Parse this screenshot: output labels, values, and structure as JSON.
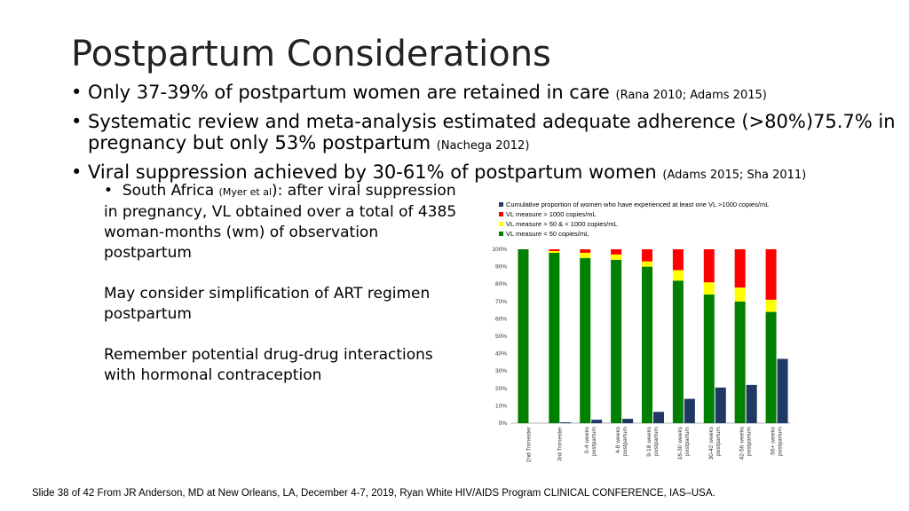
{
  "slide": {
    "title": "Postpartum Considerations",
    "bullets": [
      {
        "text": "Only 37-39% of postpartum women are retained in care ",
        "cite": "(Rana 2010; Adams 2015)"
      },
      {
        "text": "Systematic review and meta-analysis estimated adequate adherence (>80%)75.7% in pregnancy but only 53% postpartum ",
        "cite": "(Nachega 2012)"
      },
      {
        "text": "Viral suppression achieved by 30-61% of postpartum women ",
        "cite": "(Adams 2015; Sha 2011)"
      }
    ],
    "sub": {
      "bullet_pre": "South Africa ",
      "bullet_cite": "(Myer et al",
      "bullet_post": "): after viral suppression in pregnancy,  VL obtained over a total of 4385 woman-months (wm) of observation postpartum",
      "para2": "May consider simplification of ART regimen postpartum",
      "para3": "Remember potential drug-drug interactions with hormonal contraception"
    },
    "footer": "Slide 38 of 42 From JR Anderson, MD at New Orleans, LA, December 4-7, 2019, Ryan White HIV/AIDS Program CLINICAL CONFERENCE, IAS–USA."
  },
  "chart_data": {
    "type": "bar",
    "categories": [
      "2nd Trimester",
      "3rd Trimester",
      "0-4 weeks postpartum",
      "4-8 weeks postpartum",
      "9-18 weeks postpartum",
      "18-30 weeks postpartum",
      "30-42 weeks postpartum",
      "42-56 weeks postpartum",
      "56+ weeks postpartum"
    ],
    "legend": [
      {
        "name": "Cumulative proportion of women who have experienced at least one VL >1000 copies/mL",
        "color": "#1f3864"
      },
      {
        "name": "VL measure > 1000 copies/mL",
        "color": "#ff0000"
      },
      {
        "name": "VL measure > 50 & < 1000 copies/mL",
        "color": "#ffff00"
      },
      {
        "name": "VL measure < 50 copies/mL",
        "color": "#008000"
      }
    ],
    "stacked_series": [
      {
        "name": "VL measure < 50 copies/mL",
        "color": "#008000",
        "values": [
          100,
          98,
          95,
          94,
          90,
          82,
          74,
          70,
          64
        ]
      },
      {
        "name": "VL measure > 50 & < 1000 copies/mL",
        "color": "#ffff00",
        "values": [
          0,
          1,
          3,
          3,
          3,
          6,
          7,
          8,
          7
        ]
      },
      {
        "name": "VL measure > 1000 copies/mL",
        "color": "#ff0000",
        "values": [
          0,
          1,
          2,
          3,
          7,
          12,
          19,
          22,
          29
        ]
      }
    ],
    "cumulative_series": {
      "name": "Cumulative proportion of women who have experienced at least one VL >1000 copies/mL",
      "color": "#1f3864",
      "values": [
        0,
        0.5,
        2,
        2.5,
        6.5,
        14,
        20.5,
        22,
        37
      ]
    },
    "yticks": [
      "0%",
      "10%",
      "20%",
      "30%",
      "40%",
      "50%",
      "60%",
      "70%",
      "80%",
      "90%",
      "100%"
    ],
    "ylim": [
      0,
      100
    ],
    "legend_position": "top"
  }
}
